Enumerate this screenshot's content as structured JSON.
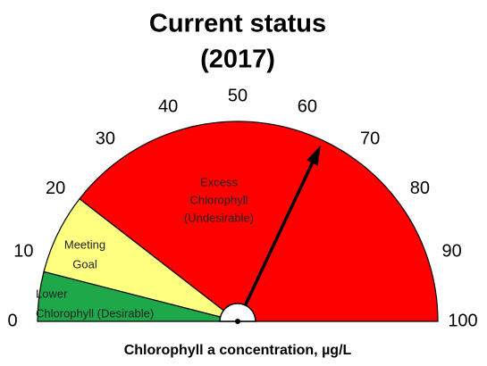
{
  "chart_data": {
    "type": "gauge",
    "title": [
      "Current status",
      "(2017)"
    ],
    "xlabel": "Chlorophyll a concentration, µg/L",
    "xlim": [
      0,
      100
    ],
    "xticks": [
      0,
      10,
      20,
      30,
      40,
      50,
      60,
      70,
      80,
      90,
      100
    ],
    "value": 64,
    "needle_color": "#000000",
    "bands": [
      {
        "label": [
          "Lower",
          "Chlorophyll (Desirable)"
        ],
        "color": "#1fa84a",
        "from": 0,
        "to": 8
      },
      {
        "label": [
          "Meeting",
          "Goal"
        ],
        "color": "#ffff80",
        "from": 8,
        "to": 21
      },
      {
        "label": [
          "Excess",
          "Chlorophyll",
          "(Undesirable)"
        ],
        "color": "#ff0000",
        "from": 21,
        "to": 100
      }
    ]
  }
}
